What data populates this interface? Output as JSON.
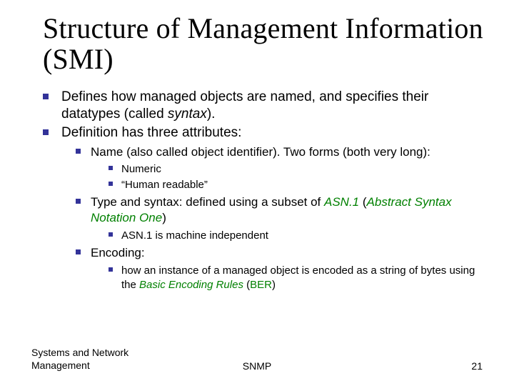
{
  "colors": {
    "bullet": "#333399",
    "text": "#000000",
    "accent_green": "#008000",
    "background": "#ffffff"
  },
  "typography": {
    "title_family": "Times New Roman",
    "body_family": "Verdana",
    "title_size_pt": 40,
    "lvl1_size_pt": 19,
    "lvl2_size_pt": 17,
    "lvl3_size_pt": 15,
    "footer_size_pt": 14
  },
  "title": "Structure of Management Information (SMI)",
  "bullets": {
    "a1_pre": "Defines how managed objects are named, and specifies their datatypes (called ",
    "a1_em": "syntax",
    "a1_post": ").",
    "a2": "Definition has three attributes:",
    "b1": "Name (also called object identifier).  Two forms (both very long):",
    "c1": "Numeric",
    "c2": "“Human readable”",
    "b2_pre": "Type and syntax: defined using a subset of ",
    "b2_asn": "ASN.1",
    "b2_open": " (",
    "b2_full": "Abstract Syntax Notation One",
    "b2_close": ")",
    "c3": "ASN.1 is machine independent",
    "b3": "Encoding:",
    "c4_pre": "how an instance of a managed object is encoded as a string of bytes using the ",
    "c4_ber_full": "Basic Encoding Rules",
    "c4_open": " (",
    "c4_ber": "BER",
    "c4_close": ")"
  },
  "footer": {
    "left_line1": "Systems and Network",
    "left_line2": "Management",
    "center": "SNMP",
    "page": "21"
  }
}
